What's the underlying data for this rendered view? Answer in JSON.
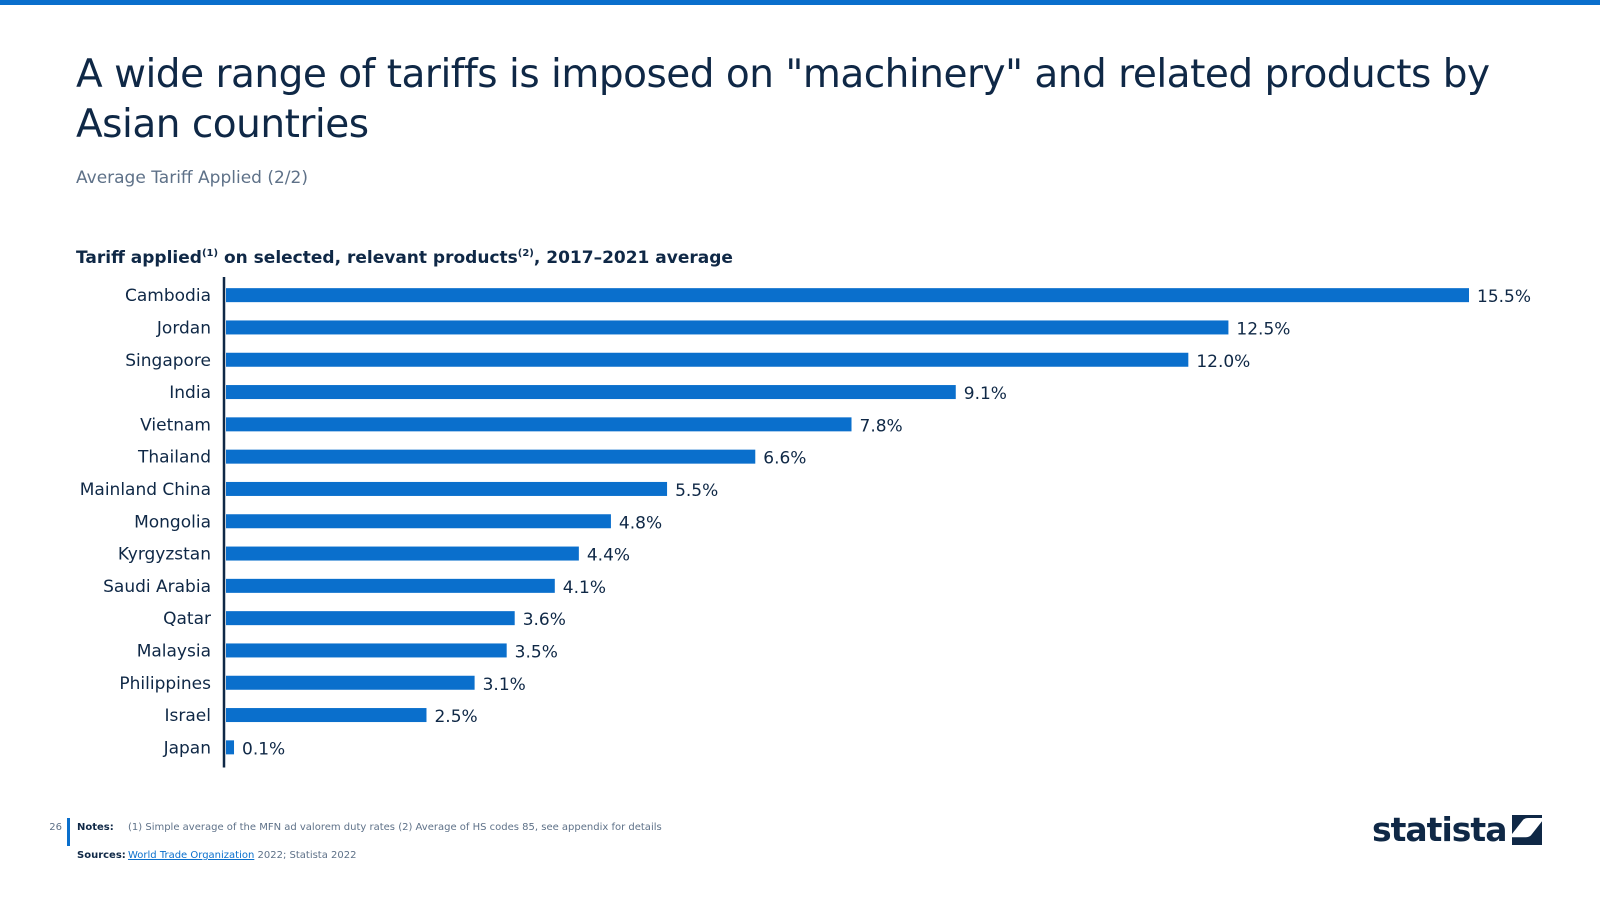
{
  "header": {
    "title": "A wide range of tariffs is imposed on \"machinery\" and related products by Asian countries",
    "subtitle": "Average Tariff Applied (2/2)"
  },
  "chart_heading": {
    "part1": "Tariff applied",
    "sup1": "(1)",
    "part2": " on selected, relevant products",
    "sup2": "(2)",
    "part3": ", 2017–2021 average"
  },
  "chart_data": {
    "type": "bar",
    "orientation": "horizontal",
    "title": "Tariff applied(1) on selected, relevant products(2), 2017–2021 average",
    "categories": [
      "Cambodia",
      "Jordan",
      "Singapore",
      "India",
      "Vietnam",
      "Thailand",
      "Mainland China",
      "Mongolia",
      "Kyrgyzstan",
      "Saudi Arabia",
      "Qatar",
      "Malaysia",
      "Philippines",
      "Israel",
      "Japan"
    ],
    "values": [
      15.5,
      12.5,
      12.0,
      9.1,
      7.8,
      6.6,
      5.5,
      4.8,
      4.4,
      4.1,
      3.6,
      3.5,
      3.1,
      2.5,
      0.1
    ],
    "labels": [
      "15.5%",
      "12.5%",
      "12.0%",
      "9.1%",
      "7.8%",
      "6.6%",
      "5.5%",
      "4.8%",
      "4.4%",
      "4.1%",
      "3.6%",
      "3.5%",
      "3.1%",
      "2.5%",
      "0.1%"
    ],
    "unit": "%",
    "xlim": [
      0,
      15.5
    ],
    "grid": false,
    "bar_color": "#0a6fcc",
    "axis_color": "#0f2846"
  },
  "footer": {
    "page_number": "26",
    "notes_label": "Notes:",
    "notes_text": "(1) Simple average of the MFN ad valorem duty rates (2) Average of HS codes 85, see appendix for details",
    "sources_label": "Sources:",
    "source_link": "World Trade Organization",
    "source_rest": " 2022; Statista 2022",
    "brand": "statista"
  },
  "colors": {
    "accent": "#0a6fcc",
    "navy": "#0f2846",
    "muted": "#5e7188"
  }
}
